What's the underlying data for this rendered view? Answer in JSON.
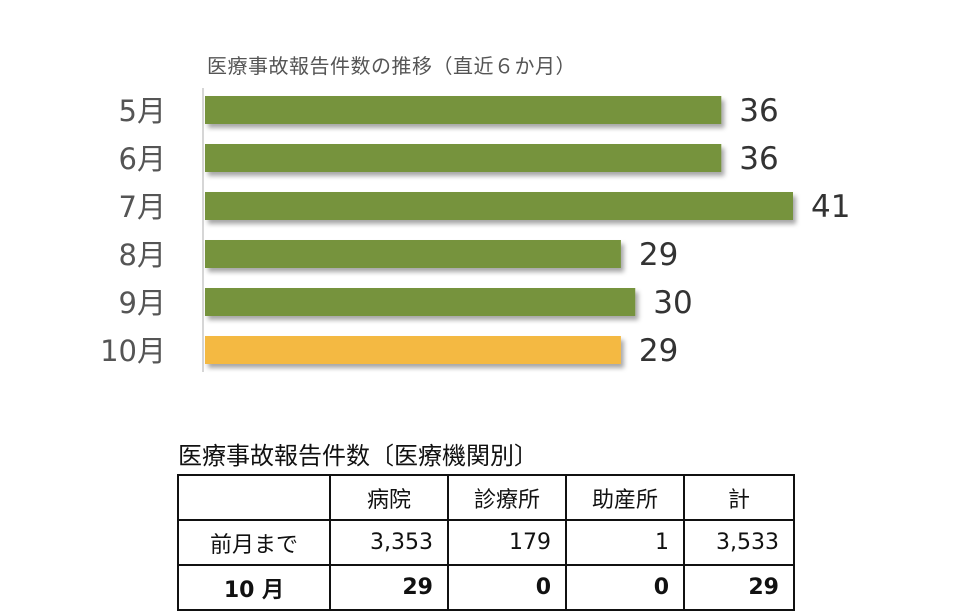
{
  "chart_data": {
    "type": "bar",
    "orientation": "horizontal",
    "title": "医療事故報告件数の推移（直近６か月）",
    "categories": [
      "5月",
      "6月",
      "7月",
      "8月",
      "9月",
      "10月"
    ],
    "values": [
      36,
      36,
      41,
      29,
      30,
      29
    ],
    "xlim": [
      0,
      41
    ],
    "bar_color": "#76933c",
    "highlight_color": "#f4b942",
    "highlight_index": 5,
    "grid": false,
    "legend": "none"
  },
  "table": {
    "title": "医療事故報告件数〔医療機関別〕",
    "headers": [
      "",
      "病院",
      "診療所",
      "助産所",
      "計"
    ],
    "rows": [
      {
        "label": "前月まで",
        "values": [
          "3,353",
          "179",
          "1",
          "3,533"
        ]
      },
      {
        "label": "10 月",
        "values": [
          "29",
          "0",
          "0",
          "29"
        ]
      }
    ]
  }
}
